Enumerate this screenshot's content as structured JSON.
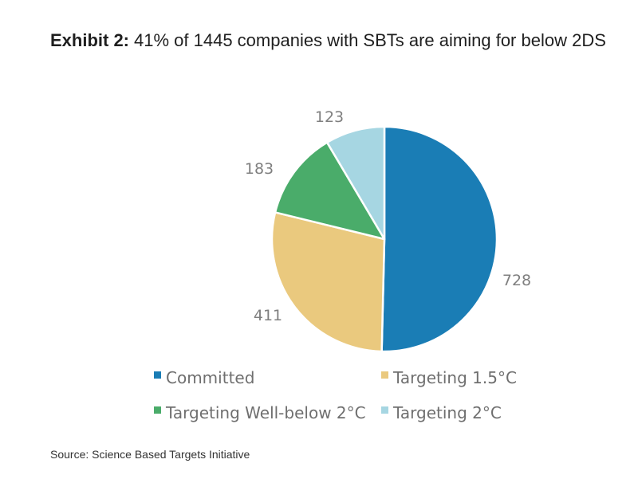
{
  "header": {
    "exhibit_label": "Exhibit 2:",
    "title_text": "41% of 1445 companies with SBTs are aiming for below 2DS"
  },
  "source": "Source: Science Based Targets Initiative",
  "chart_data": {
    "type": "pie",
    "title": "",
    "categories": [
      "Committed",
      "Targeting 1.5°C",
      "Targeting Well-below 2°C",
      "Targeting 2°C"
    ],
    "values": [
      728,
      411,
      183,
      123
    ],
    "colors": [
      "#1a7db5",
      "#eac97e",
      "#4aac6a",
      "#a6d6e2"
    ],
    "legend_position": "bottom"
  }
}
